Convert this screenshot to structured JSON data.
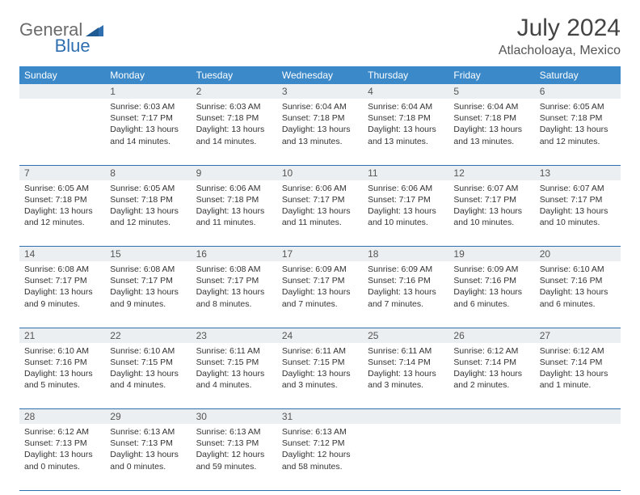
{
  "brand": {
    "left": "General",
    "right": "Blue"
  },
  "title": "July 2024",
  "location": "Atlacholoaya, Mexico",
  "colors": {
    "header_bg": "#3b89c9",
    "header_text": "#ffffff",
    "daynum_bg": "#eceff1",
    "border": "#2f6fb0",
    "brand_gray": "#6b6b6b",
    "brand_blue": "#2f6fb0"
  },
  "day_headers": [
    "Sunday",
    "Monday",
    "Tuesday",
    "Wednesday",
    "Thursday",
    "Friday",
    "Saturday"
  ],
  "weeks": [
    [
      {
        "n": "",
        "lines": []
      },
      {
        "n": "1",
        "lines": [
          "Sunrise: 6:03 AM",
          "Sunset: 7:17 PM",
          "Daylight: 13 hours",
          "and 14 minutes."
        ]
      },
      {
        "n": "2",
        "lines": [
          "Sunrise: 6:03 AM",
          "Sunset: 7:18 PM",
          "Daylight: 13 hours",
          "and 14 minutes."
        ]
      },
      {
        "n": "3",
        "lines": [
          "Sunrise: 6:04 AM",
          "Sunset: 7:18 PM",
          "Daylight: 13 hours",
          "and 13 minutes."
        ]
      },
      {
        "n": "4",
        "lines": [
          "Sunrise: 6:04 AM",
          "Sunset: 7:18 PM",
          "Daylight: 13 hours",
          "and 13 minutes."
        ]
      },
      {
        "n": "5",
        "lines": [
          "Sunrise: 6:04 AM",
          "Sunset: 7:18 PM",
          "Daylight: 13 hours",
          "and 13 minutes."
        ]
      },
      {
        "n": "6",
        "lines": [
          "Sunrise: 6:05 AM",
          "Sunset: 7:18 PM",
          "Daylight: 13 hours",
          "and 12 minutes."
        ]
      }
    ],
    [
      {
        "n": "7",
        "lines": [
          "Sunrise: 6:05 AM",
          "Sunset: 7:18 PM",
          "Daylight: 13 hours",
          "and 12 minutes."
        ]
      },
      {
        "n": "8",
        "lines": [
          "Sunrise: 6:05 AM",
          "Sunset: 7:18 PM",
          "Daylight: 13 hours",
          "and 12 minutes."
        ]
      },
      {
        "n": "9",
        "lines": [
          "Sunrise: 6:06 AM",
          "Sunset: 7:18 PM",
          "Daylight: 13 hours",
          "and 11 minutes."
        ]
      },
      {
        "n": "10",
        "lines": [
          "Sunrise: 6:06 AM",
          "Sunset: 7:17 PM",
          "Daylight: 13 hours",
          "and 11 minutes."
        ]
      },
      {
        "n": "11",
        "lines": [
          "Sunrise: 6:06 AM",
          "Sunset: 7:17 PM",
          "Daylight: 13 hours",
          "and 10 minutes."
        ]
      },
      {
        "n": "12",
        "lines": [
          "Sunrise: 6:07 AM",
          "Sunset: 7:17 PM",
          "Daylight: 13 hours",
          "and 10 minutes."
        ]
      },
      {
        "n": "13",
        "lines": [
          "Sunrise: 6:07 AM",
          "Sunset: 7:17 PM",
          "Daylight: 13 hours",
          "and 10 minutes."
        ]
      }
    ],
    [
      {
        "n": "14",
        "lines": [
          "Sunrise: 6:08 AM",
          "Sunset: 7:17 PM",
          "Daylight: 13 hours",
          "and 9 minutes."
        ]
      },
      {
        "n": "15",
        "lines": [
          "Sunrise: 6:08 AM",
          "Sunset: 7:17 PM",
          "Daylight: 13 hours",
          "and 9 minutes."
        ]
      },
      {
        "n": "16",
        "lines": [
          "Sunrise: 6:08 AM",
          "Sunset: 7:17 PM",
          "Daylight: 13 hours",
          "and 8 minutes."
        ]
      },
      {
        "n": "17",
        "lines": [
          "Sunrise: 6:09 AM",
          "Sunset: 7:17 PM",
          "Daylight: 13 hours",
          "and 7 minutes."
        ]
      },
      {
        "n": "18",
        "lines": [
          "Sunrise: 6:09 AM",
          "Sunset: 7:16 PM",
          "Daylight: 13 hours",
          "and 7 minutes."
        ]
      },
      {
        "n": "19",
        "lines": [
          "Sunrise: 6:09 AM",
          "Sunset: 7:16 PM",
          "Daylight: 13 hours",
          "and 6 minutes."
        ]
      },
      {
        "n": "20",
        "lines": [
          "Sunrise: 6:10 AM",
          "Sunset: 7:16 PM",
          "Daylight: 13 hours",
          "and 6 minutes."
        ]
      }
    ],
    [
      {
        "n": "21",
        "lines": [
          "Sunrise: 6:10 AM",
          "Sunset: 7:16 PM",
          "Daylight: 13 hours",
          "and 5 minutes."
        ]
      },
      {
        "n": "22",
        "lines": [
          "Sunrise: 6:10 AM",
          "Sunset: 7:15 PM",
          "Daylight: 13 hours",
          "and 4 minutes."
        ]
      },
      {
        "n": "23",
        "lines": [
          "Sunrise: 6:11 AM",
          "Sunset: 7:15 PM",
          "Daylight: 13 hours",
          "and 4 minutes."
        ]
      },
      {
        "n": "24",
        "lines": [
          "Sunrise: 6:11 AM",
          "Sunset: 7:15 PM",
          "Daylight: 13 hours",
          "and 3 minutes."
        ]
      },
      {
        "n": "25",
        "lines": [
          "Sunrise: 6:11 AM",
          "Sunset: 7:14 PM",
          "Daylight: 13 hours",
          "and 3 minutes."
        ]
      },
      {
        "n": "26",
        "lines": [
          "Sunrise: 6:12 AM",
          "Sunset: 7:14 PM",
          "Daylight: 13 hours",
          "and 2 minutes."
        ]
      },
      {
        "n": "27",
        "lines": [
          "Sunrise: 6:12 AM",
          "Sunset: 7:14 PM",
          "Daylight: 13 hours",
          "and 1 minute."
        ]
      }
    ],
    [
      {
        "n": "28",
        "lines": [
          "Sunrise: 6:12 AM",
          "Sunset: 7:13 PM",
          "Daylight: 13 hours",
          "and 0 minutes."
        ]
      },
      {
        "n": "29",
        "lines": [
          "Sunrise: 6:13 AM",
          "Sunset: 7:13 PM",
          "Daylight: 13 hours",
          "and 0 minutes."
        ]
      },
      {
        "n": "30",
        "lines": [
          "Sunrise: 6:13 AM",
          "Sunset: 7:13 PM",
          "Daylight: 12 hours",
          "and 59 minutes."
        ]
      },
      {
        "n": "31",
        "lines": [
          "Sunrise: 6:13 AM",
          "Sunset: 7:12 PM",
          "Daylight: 12 hours",
          "and 58 minutes."
        ]
      },
      {
        "n": "",
        "lines": []
      },
      {
        "n": "",
        "lines": []
      },
      {
        "n": "",
        "lines": []
      }
    ]
  ]
}
